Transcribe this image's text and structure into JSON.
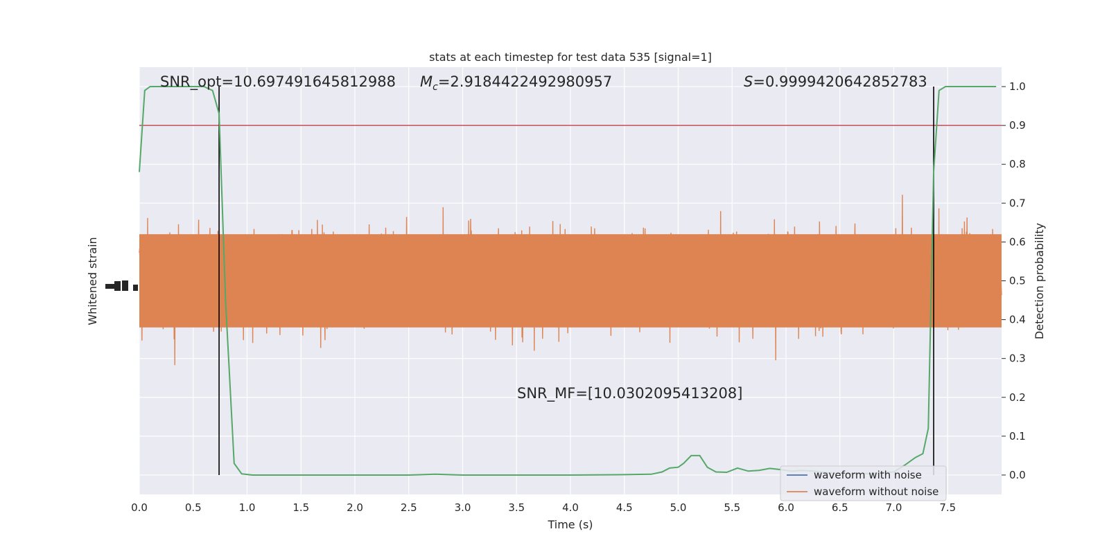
{
  "chart_data": {
    "type": "line",
    "title": "stats at each timestep for test data 535 [signal=1]",
    "xlabel": "Time (s)",
    "ylabel_left": "Whitened strain",
    "ylabel_right": "Detection probability",
    "xlim": [
      0,
      8
    ],
    "ylim_right": [
      -0.05,
      1.05
    ],
    "x_ticks": [
      "0.0",
      "0.5",
      "1.0",
      "1.5",
      "2.0",
      "2.5",
      "3.0",
      "3.5",
      "4.0",
      "4.5",
      "5.0",
      "5.5",
      "6.0",
      "6.5",
      "7.0",
      "7.5"
    ],
    "y_ticks_right": [
      "0.0",
      "0.1",
      "0.2",
      "0.3",
      "0.4",
      "0.5",
      "0.6",
      "0.7",
      "0.8",
      "0.9",
      "1.0"
    ],
    "grid": true,
    "threshold": 0.9,
    "vlines": [
      0.74,
      7.37
    ],
    "annotations": {
      "snr_opt": "SNR_opt=10.697491645812988",
      "mc_symbol": "M",
      "mc_sub": "c",
      "mc_value": "=2.9184422492980957",
      "s_symbol": "S",
      "s_value": "=0.9999420642852783",
      "snr_mf": "SNR_MF=[10.0302095413208]"
    },
    "legend": {
      "placement": "lower-right",
      "entries": [
        {
          "label": "waveform with noise",
          "color": "#4c72b0"
        },
        {
          "label": "waveform without noise",
          "color": "#dd8452"
        }
      ]
    },
    "noise_series": {
      "name": "waveform without noise",
      "color": "#dd8452"
    },
    "probability_series": {
      "color": "#55a868",
      "x": [
        0.0,
        0.05,
        0.1,
        0.15,
        0.2,
        0.3,
        0.4,
        0.5,
        0.6,
        0.68,
        0.74,
        0.8,
        0.88,
        0.95,
        1.05,
        1.5,
        2.0,
        2.5,
        2.75,
        3.0,
        3.5,
        4.0,
        4.5,
        4.75,
        4.85,
        4.92,
        5.0,
        5.05,
        5.12,
        5.2,
        5.27,
        5.35,
        5.45,
        5.55,
        5.65,
        5.75,
        5.85,
        5.95,
        6.05,
        6.15,
        6.25,
        6.4,
        6.6,
        6.8,
        7.0,
        7.1,
        7.2,
        7.27,
        7.32,
        7.37,
        7.42,
        7.48,
        7.55,
        7.65,
        7.8,
        7.95
      ],
      "y": [
        0.78,
        0.99,
        1.0,
        1.0,
        1.0,
        1.0,
        1.0,
        1.0,
        1.0,
        0.99,
        0.93,
        0.45,
        0.03,
        0.003,
        0.0,
        0.0,
        0.0,
        0.0,
        0.002,
        0.0,
        0.0,
        0.0,
        0.001,
        0.002,
        0.008,
        0.018,
        0.02,
        0.03,
        0.05,
        0.05,
        0.02,
        0.008,
        0.007,
        0.018,
        0.01,
        0.012,
        0.017,
        0.014,
        0.01,
        0.012,
        0.01,
        0.005,
        0.003,
        0.004,
        0.008,
        0.025,
        0.045,
        0.055,
        0.12,
        0.78,
        0.99,
        1.0,
        1.0,
        1.0,
        1.0,
        1.0
      ]
    }
  }
}
